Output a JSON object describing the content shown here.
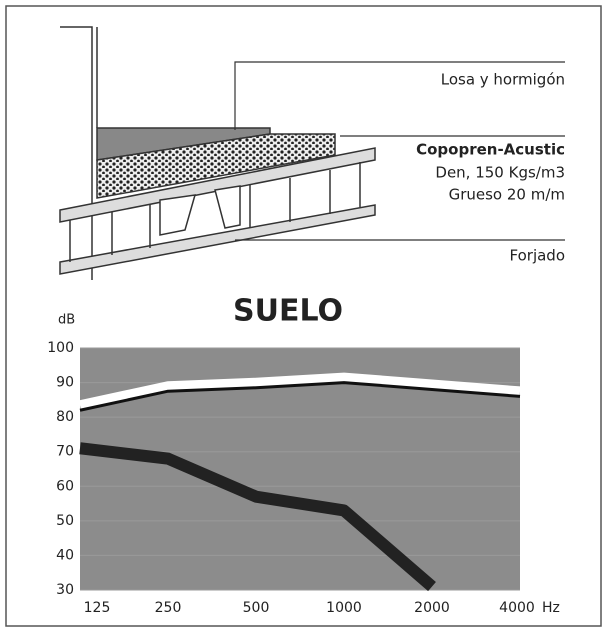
{
  "diagram": {
    "labels": [
      "Losa y hormigón",
      "Copopren-Acustic",
      "Den, 150 Kgs/m3",
      "Grueso 20 m/m",
      "Forjado"
    ]
  },
  "chart_data": {
    "type": "line",
    "title": "SUELO",
    "y_label": "dB",
    "x_label": "Hz",
    "categories": [
      "125",
      "250",
      "500",
      "1000",
      "2000",
      "4000"
    ],
    "series": [
      {
        "color": "#111111",
        "values": [
          82,
          87.5,
          88.5,
          90,
          88,
          86
        ]
      },
      {
        "color": "#222222",
        "values": [
          71,
          68,
          57,
          53,
          31,
          null
        ]
      }
    ],
    "ylim": [
      30,
      100
    ],
    "yticks": [
      30,
      40,
      50,
      60,
      70,
      80,
      90,
      100
    ],
    "grid": true
  }
}
